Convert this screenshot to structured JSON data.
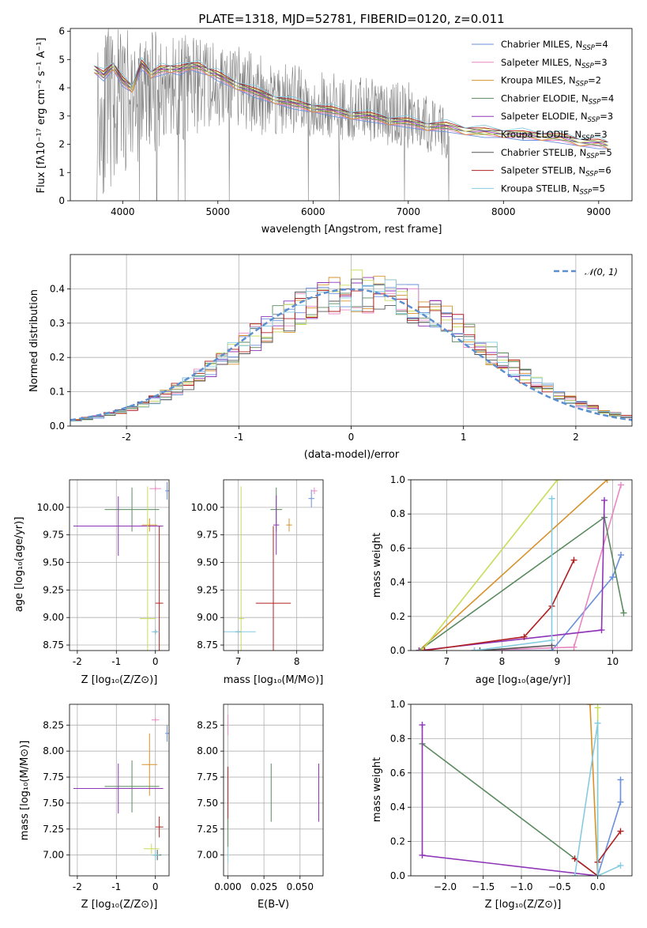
{
  "chart_data": [
    {
      "type": "line",
      "title": "PLATE=1318, MJD=52781, FIBERID=0120, z=0.011",
      "xlabel": "wavelength [Angstrom, rest frame]",
      "ylabel": "Flux [fλ10⁻¹⁷ erg cm⁻² s⁻¹ A⁻¹]",
      "xlim": [
        3450,
        9350
      ],
      "ylim": [
        0,
        6.1
      ],
      "xticks": [
        4000,
        5000,
        6000,
        7000,
        8000,
        9000
      ],
      "yticks": [
        0,
        1,
        2,
        3,
        4,
        5,
        6
      ],
      "legend_position": "top-right",
      "data_series": {
        "name": "data",
        "color": "#808080",
        "wavelength_range": [
          3730,
          7430
        ],
        "envelope_x": [
          3750,
          4000,
          4500,
          5000,
          5500,
          6000,
          6500,
          7000,
          7400
        ],
        "envelope_low": [
          0,
          1,
          2,
          2.5,
          2.3,
          2.2,
          2.1,
          1.8,
          1.5
        ],
        "envelope_high": [
          6.1,
          6.1,
          6.0,
          5.7,
          5.2,
          4.6,
          4.4,
          4.2,
          3.3
        ]
      },
      "series": [
        {
          "name": "Chabrier MILES, N$_{SSP}$=4",
          "legend": [
            "Chabrier MILES, N",
            "SSP",
            "=4"
          ],
          "color": "#6a8fdb"
        },
        {
          "name": "Salpeter MILES, N$_{SSP}$=3",
          "legend": [
            "Salpeter MILES, N",
            "SSP",
            "=3"
          ],
          "color": "#e888c2"
        },
        {
          "name": "Kroupa MILES, N$_{SSP}$=2",
          "legend": [
            "Kroupa MILES, N",
            "SSP",
            "=2"
          ],
          "color": "#d7922c"
        },
        {
          "name": "Chabrier ELODIE, N$_{SSP}$=4",
          "legend": [
            "Chabrier ELODIE, N",
            "SSP",
            "=4"
          ],
          "color": "#5a8a5e"
        },
        {
          "name": "Salpeter ELODIE, N$_{SSP}$=3",
          "legend": [
            "Salpeter ELODIE, N",
            "SSP",
            "=3"
          ],
          "color": "#8e35b8"
        },
        {
          "name": "Kroupa ELODIE, N$_{SSP}$=3",
          "legend": [
            "Kroupa ELODIE, N",
            "SSP",
            "=3"
          ],
          "color": "#c8dc5a"
        },
        {
          "name": "Chabrier STELIB, N$_{SSP}$=5",
          "legend": [
            "Chabrier STELIB, N",
            "SSP",
            "=5"
          ],
          "color": "#555555"
        },
        {
          "name": "Salpeter STELIB, N$_{SSP}$=6",
          "legend": [
            "Salpeter STELIB, N",
            "SSP",
            "=6"
          ],
          "color": "#b02020"
        },
        {
          "name": "Kroupa STELIB, N$_{SSP}$=5",
          "legend": [
            "Kroupa STELIB, N",
            "SSP",
            "=5"
          ],
          "color": "#86cce0"
        }
      ],
      "model_x": [
        3700,
        3800,
        3900,
        4000,
        4100,
        4200,
        4300,
        4400,
        4500,
        4600,
        4700,
        4800,
        4900,
        5000,
        5200,
        5400,
        5600,
        5800,
        6000,
        6200,
        6400,
        6600,
        6800,
        7000,
        7200,
        7400,
        7600,
        7800,
        8000,
        8200,
        8400,
        8600,
        8800,
        9000,
        9100
      ],
      "model_y": [
        4.7,
        4.4,
        4.8,
        4.2,
        4.0,
        4.8,
        4.5,
        4.6,
        4.7,
        4.6,
        4.8,
        4.7,
        4.6,
        4.4,
        4.1,
        3.8,
        3.6,
        3.4,
        3.3,
        3.15,
        3.05,
        2.95,
        2.85,
        2.75,
        2.65,
        2.6,
        2.5,
        2.4,
        2.4,
        2.3,
        2.3,
        2.2,
        2.1,
        2.0,
        2.0
      ]
    },
    {
      "type": "line",
      "xlabel": "(data-model)/error",
      "ylabel": "Normed distribution",
      "xlim": [
        -2.5,
        2.5
      ],
      "ylim": [
        0,
        0.5
      ],
      "xticks": [
        -2,
        -1,
        0,
        1,
        2
      ],
      "yticks": [
        0.0,
        0.1,
        0.2,
        0.3,
        0.4
      ],
      "grid": true,
      "legend_position": "top-right",
      "reference_curve": {
        "name": "N(0,1)",
        "legend_text": "𝒩(0, 1)",
        "color": "#5b8fd0",
        "style": "dashed",
        "function": "gaussian",
        "mean": 0,
        "sigma": 1
      },
      "histogram_x": [
        -2.5,
        -2.4,
        -2.3,
        -2.2,
        -2.1,
        -2.0,
        -1.9,
        -1.8,
        -1.7,
        -1.6,
        -1.5,
        -1.4,
        -1.3,
        -1.2,
        -1.1,
        -1.0,
        -0.9,
        -0.8,
        -0.7,
        -0.6,
        -0.5,
        -0.4,
        -0.3,
        -0.2,
        -0.1,
        0.0,
        0.1,
        0.2,
        0.3,
        0.4,
        0.5,
        0.6,
        0.7,
        0.8,
        0.9,
        1.0,
        1.1,
        1.2,
        1.3,
        1.4,
        1.5,
        1.6,
        1.7,
        1.8,
        1.9,
        2.0,
        2.1,
        2.2,
        2.3,
        2.4
      ],
      "histogram_base": [
        0.017,
        0.022,
        0.027,
        0.034,
        0.042,
        0.052,
        0.063,
        0.076,
        0.091,
        0.108,
        0.126,
        0.146,
        0.167,
        0.189,
        0.212,
        0.235,
        0.259,
        0.282,
        0.303,
        0.323,
        0.341,
        0.357,
        0.37,
        0.381,
        0.388,
        0.392,
        0.392,
        0.388,
        0.381,
        0.37,
        0.357,
        0.341,
        0.323,
        0.303,
        0.282,
        0.259,
        0.235,
        0.212,
        0.189,
        0.167,
        0.146,
        0.126,
        0.108,
        0.091,
        0.076,
        0.063,
        0.052,
        0.042,
        0.034,
        0.027
      ]
    },
    {
      "type": "scatter",
      "xlabel": "Z [log₁₀(Z/Z⊙)]",
      "ylabel": "age  [log₁₀(age/yr)]",
      "xlim": [
        -2.2,
        0.35
      ],
      "ylim": [
        8.7,
        10.25
      ],
      "xticks": [
        -2,
        -1,
        0
      ],
      "yticks": [
        8.75,
        9.0,
        9.25,
        9.5,
        9.75,
        10.0
      ],
      "grid": true,
      "points": [
        {
          "color": "#6a8fdb",
          "x": 0.3,
          "y": 10.15,
          "xerr": 0.05,
          "yerr": 0.08
        },
        {
          "color": "#e888c2",
          "x": 0.0,
          "y": 10.17,
          "xerr": 0.15,
          "yerr": 0.02
        },
        {
          "color": "#d7922c",
          "x": -0.15,
          "y": 9.84,
          "xerr": 0.2,
          "yerr": 0.06
        },
        {
          "color": "#5a8a5e",
          "x": -0.6,
          "y": 9.98,
          "xerr": 0.7,
          "yerr": 0.2
        },
        {
          "color": "#8e35b8",
          "x": -0.95,
          "y": 9.83,
          "xerr": 1.15,
          "yerr": 0.27
        },
        {
          "color": "#c8dc5a",
          "x": -0.2,
          "y": 8.99,
          "xerr": 0.2,
          "yerr": 1.2
        },
        {
          "color": "#555555",
          "x": 0.0,
          "y": 8.87,
          "xerr": 0.05,
          "yerr": 0.02
        },
        {
          "color": "#b02020",
          "x": 0.1,
          "y": 9.13,
          "xerr": 0.1,
          "yerr": 0.7
        },
        {
          "color": "#86cce0",
          "x": 0.0,
          "y": 8.87,
          "xerr": 0.1,
          "yerr": 0.02
        }
      ]
    },
    {
      "type": "scatter",
      "xlabel": "mass [log₁₀(M/M⊙)]",
      "ylabel": "",
      "xlim": [
        6.75,
        8.45
      ],
      "ylim": [
        8.7,
        10.25
      ],
      "xticks": [
        7,
        8
      ],
      "yticks": [
        8.75,
        9.0,
        9.25,
        9.5,
        9.75,
        10.0
      ],
      "grid": true,
      "points": [
        {
          "color": "#6a8fdb",
          "x": 8.25,
          "y": 10.08,
          "xerr": 0.05,
          "yerr": 0.08
        },
        {
          "color": "#e888c2",
          "x": 8.3,
          "y": 10.15,
          "xerr": 0.05,
          "yerr": 0.03
        },
        {
          "color": "#d7922c",
          "x": 7.87,
          "y": 9.84,
          "xerr": 0.05,
          "yerr": 0.06
        },
        {
          "color": "#5a8a5e",
          "x": 7.65,
          "y": 9.98,
          "xerr": 0.1,
          "yerr": 0.2
        },
        {
          "color": "#8e35b8",
          "x": 7.65,
          "y": 9.84,
          "xerr": 0.05,
          "yerr": 0.27
        },
        {
          "color": "#c8dc5a",
          "x": 7.05,
          "y": 8.99,
          "xerr": 0.05,
          "yerr": 1.2
        },
        {
          "color": "#555555",
          "x": 7.0,
          "y": 8.87,
          "xerr": 0.05,
          "yerr": 0.02
        },
        {
          "color": "#b02020",
          "x": 7.6,
          "y": 9.13,
          "xerr": 0.3,
          "yerr": 0.7
        },
        {
          "color": "#86cce0",
          "x": 7.0,
          "y": 8.87,
          "xerr": 0.3,
          "yerr": 0.02
        }
      ]
    },
    {
      "type": "line",
      "xlabel": "age  [log₁₀(age/yr)]",
      "ylabel": "mass weight",
      "xlim": [
        6.35,
        10.35
      ],
      "ylim": [
        0,
        1.0
      ],
      "xticks": [
        7,
        8,
        9,
        10
      ],
      "yticks": [
        0.0,
        0.2,
        0.4,
        0.6,
        0.8,
        1.0
      ],
      "grid": true,
      "series": [
        {
          "color": "#6a8fdb",
          "x": [
            7.5,
            8.9,
            10.0,
            10.15
          ],
          "y": [
            0.0,
            0.0,
            0.43,
            0.56
          ]
        },
        {
          "color": "#e888c2",
          "x": [
            7.5,
            9.3,
            10.15
          ],
          "y": [
            0.0,
            0.02,
            0.97
          ]
        },
        {
          "color": "#d7922c",
          "x": [
            6.5,
            9.9
          ],
          "y": [
            0.0,
            1.0
          ]
        },
        {
          "color": "#5a8a5e",
          "x": [
            6.5,
            9.85,
            10.2
          ],
          "y": [
            0.0,
            0.78,
            0.22
          ]
        },
        {
          "color": "#8e35b8",
          "x": [
            6.5,
            9.8,
            9.85
          ],
          "y": [
            0.0,
            0.12,
            0.88
          ]
        },
        {
          "color": "#c8dc5a",
          "x": [
            6.55,
            9.0
          ],
          "y": [
            0.0,
            1.0
          ]
        },
        {
          "color": "#555555",
          "x": [
            7.6,
            8.9
          ],
          "y": [
            0.0,
            0.03
          ]
        },
        {
          "color": "#b02020",
          "x": [
            6.6,
            8.4,
            8.9,
            9.3
          ],
          "y": [
            0.0,
            0.08,
            0.26,
            0.53
          ]
        },
        {
          "color": "#86cce0",
          "x": [
            7.5,
            8.9,
            8.9
          ],
          "y": [
            0.0,
            0.06,
            0.89
          ]
        }
      ]
    },
    {
      "type": "scatter",
      "xlabel": "Z [log₁₀(Z/Z⊙)]",
      "ylabel": "mass [log₁₀(M/M⊙)]",
      "xlim": [
        -2.2,
        0.35
      ],
      "ylim": [
        6.8,
        8.45
      ],
      "xticks": [
        -2,
        -1,
        0
      ],
      "yticks": [
        7.0,
        7.25,
        7.5,
        7.75,
        8.0,
        8.25
      ],
      "grid": true,
      "points": [
        {
          "color": "#6a8fdb",
          "x": 0.3,
          "y": 8.17,
          "xerr": 0.05,
          "yerr": 0.08
        },
        {
          "color": "#e888c2",
          "x": 0.0,
          "y": 8.3,
          "xerr": 0.1,
          "yerr": 0.02
        },
        {
          "color": "#d7922c",
          "x": -0.15,
          "y": 7.87,
          "xerr": 0.2,
          "yerr": 0.3
        },
        {
          "color": "#5a8a5e",
          "x": -0.6,
          "y": 7.66,
          "xerr": 0.7,
          "yerr": 0.25
        },
        {
          "color": "#8e35b8",
          "x": -0.95,
          "y": 7.64,
          "xerr": 1.15,
          "yerr": 0.24
        },
        {
          "color": "#c8dc5a",
          "x": -0.1,
          "y": 7.06,
          "xerr": 0.2,
          "yerr": 0.05
        },
        {
          "color": "#555555",
          "x": 0.05,
          "y": 7.0,
          "xerr": 0.1,
          "yerr": 0.05
        },
        {
          "color": "#b02020",
          "x": 0.1,
          "y": 7.27,
          "xerr": 0.1,
          "yerr": 0.1
        },
        {
          "color": "#86cce0",
          "x": 0.0,
          "y": 7.0,
          "xerr": 0.1,
          "yerr": 0.05
        }
      ]
    },
    {
      "type": "scatter",
      "xlabel": "E(B-V)",
      "ylabel": "",
      "xlim": [
        -0.003,
        0.066
      ],
      "ylim": [
        6.8,
        8.45
      ],
      "xticks": [
        0.0,
        0.025,
        0.05
      ],
      "xticklabels": [
        "0.000",
        "0.025",
        "0.050"
      ],
      "yticks": [
        7.0,
        7.25,
        7.5,
        7.75,
        8.0,
        8.25
      ],
      "grid": true,
      "points": [
        {
          "color": "#e888c2",
          "x": 0.0,
          "y": 8.25,
          "xerr": 0,
          "yerr": 0.1
        },
        {
          "color": "#b02020",
          "x": 0.0,
          "y": 7.55,
          "xerr": 0,
          "yerr": 0.3
        },
        {
          "color": "#5a8a5e",
          "x": 0.0,
          "y": 7.15,
          "xerr": 0,
          "yerr": 0.2
        },
        {
          "color": "#86cce0",
          "x": 0.0,
          "y": 7.0,
          "xerr": 0,
          "yerr": 0.08
        },
        {
          "color": "#5a8a5e",
          "x": 0.03,
          "y": 7.6,
          "xerr": 0,
          "yerr": 0.28
        },
        {
          "color": "#8e35b8",
          "x": 0.063,
          "y": 7.6,
          "xerr": 0,
          "yerr": 0.28
        }
      ]
    },
    {
      "type": "line",
      "xlabel": "Z [log₁₀(Z/Z⊙)]",
      "ylabel": "mass weight",
      "xlim": [
        -2.45,
        0.45
      ],
      "ylim": [
        0,
        1.0
      ],
      "xticks": [
        -2.0,
        -1.5,
        -1.0,
        -0.5,
        0.0
      ],
      "xticklabels": [
        "−2.0",
        "−1.5",
        "−1.0",
        "−0.5",
        "0.0"
      ],
      "yticks": [
        0.0,
        0.2,
        0.4,
        0.6,
        0.8,
        1.0
      ],
      "grid": true,
      "series": [
        {
          "color": "#6a8fdb",
          "x": [
            0.0,
            0.3,
            0.3
          ],
          "y": [
            0.0,
            0.43,
            0.56
          ]
        },
        {
          "color": "#d7922c",
          "x": [
            -0.1,
            0.0
          ],
          "y": [
            1.0,
            0.0
          ]
        },
        {
          "color": "#5a8a5e",
          "x": [
            -2.3,
            0.0
          ],
          "y": [
            0.77,
            0.0
          ]
        },
        {
          "color": "#8e35b8",
          "x": [
            -2.3,
            -2.3,
            0.0
          ],
          "y": [
            0.88,
            0.12,
            0.0
          ]
        },
        {
          "color": "#c8dc5a",
          "x": [
            0.0,
            0.0
          ],
          "y": [
            0.98,
            0.0
          ]
        },
        {
          "color": "#b02020",
          "x": [
            -0.3,
            0.0,
            0.0,
            0.3
          ],
          "y": [
            0.1,
            0.0,
            0.08,
            0.26
          ]
        },
        {
          "color": "#86cce0",
          "x": [
            -0.3,
            0.0,
            0.0,
            0.3
          ],
          "y": [
            0.0,
            0.89,
            0.0,
            0.06
          ]
        }
      ]
    }
  ]
}
